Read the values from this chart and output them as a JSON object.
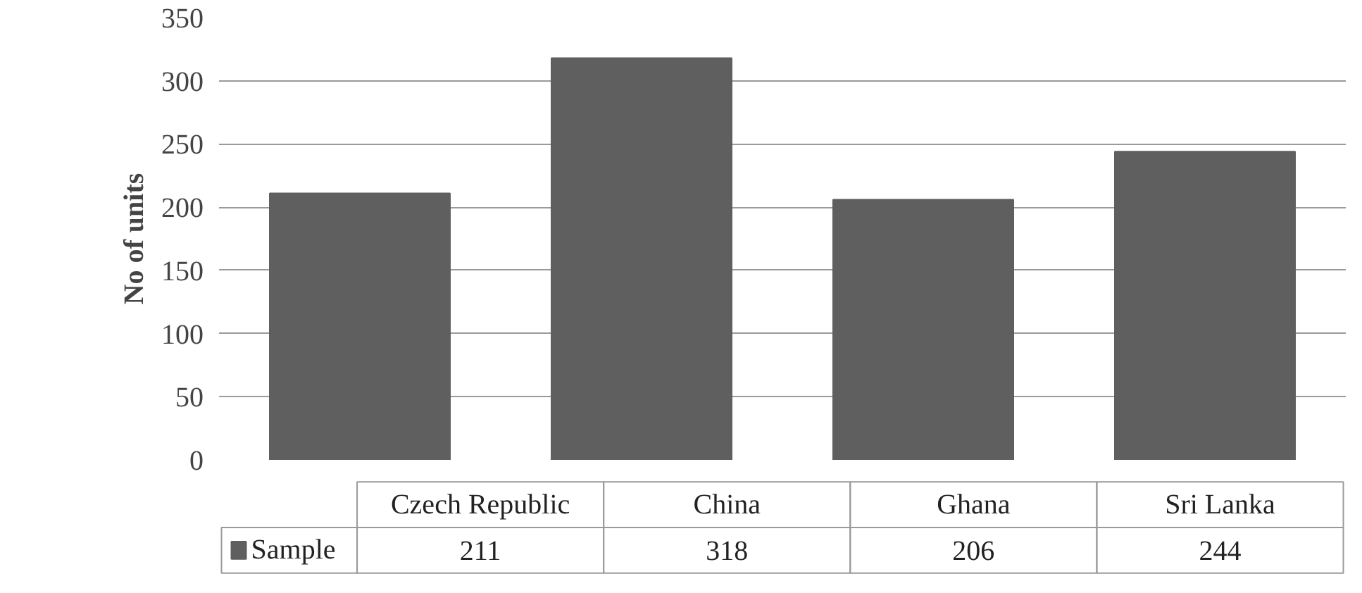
{
  "chart_data": {
    "type": "bar",
    "ylabel": "No of units",
    "categories": [
      "Czech Republic",
      "China",
      "Ghana",
      "Sri Lanka"
    ],
    "series": [
      {
        "name": "Sample",
        "color": "#5f5f5f",
        "values": [
          211,
          318,
          206,
          244
        ]
      }
    ],
    "ylim": [
      0,
      350
    ],
    "yticks": [
      0,
      50,
      100,
      150,
      200,
      250,
      300,
      350
    ],
    "grid": "y",
    "legend": "bottom left",
    "data_labels": true
  }
}
